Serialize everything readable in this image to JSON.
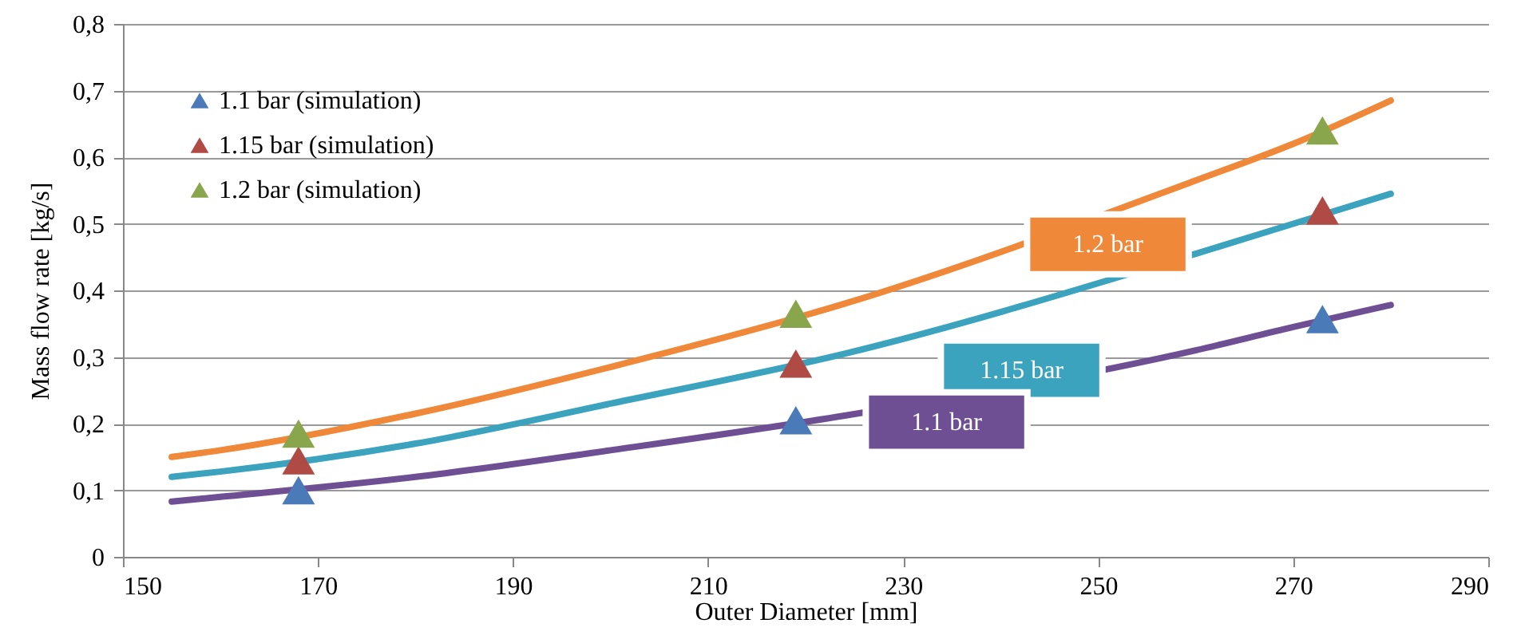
{
  "chart_data": {
    "type": "line",
    "xlabel": "Outer Diameter [mm]",
    "ylabel": "Mass flow rate [kg/s]",
    "xlim": [
      150,
      290
    ],
    "xticks": [
      150,
      170,
      190,
      210,
      230,
      250,
      270,
      290
    ],
    "ylim": [
      0,
      0.8
    ],
    "yticks": [
      0,
      {
        "value": 0.1,
        "label": "0,1"
      },
      {
        "value": 0.2,
        "label": "0,2"
      },
      {
        "value": 0.3,
        "label": "0,3"
      },
      {
        "value": 0.4,
        "label": "0,4"
      },
      {
        "value": 0.5,
        "label": "0,5"
      },
      {
        "value": 0.6,
        "label": "0,6"
      },
      {
        "value": 0.7,
        "label": "0,7"
      },
      {
        "value": 0.8,
        "label": "0,8"
      }
    ],
    "grid": "y",
    "legend": "top left",
    "series": [
      {
        "name": "1.2 bar",
        "color": "#f0883a",
        "x": [
          155,
          160,
          180,
          200,
          224,
          260,
          270,
          280
        ],
        "values": [
          0.15,
          0.16,
          0.215,
          0.285,
          0.38,
          0.565,
          0.62,
          0.685
        ]
      },
      {
        "name": "1.15 bar",
        "color": "#3ba3bd",
        "x": [
          155,
          160,
          180,
          200,
          224,
          260,
          270,
          280
        ],
        "values": [
          0.12,
          0.128,
          0.17,
          0.23,
          0.305,
          0.455,
          0.5,
          0.545
        ]
      },
      {
        "name": "1.1 bar",
        "color": "#6f4f94",
        "x": [
          155,
          160,
          180,
          200,
          224,
          260,
          270,
          280
        ],
        "values": [
          0.083,
          0.09,
          0.12,
          0.16,
          0.212,
          0.31,
          0.345,
          0.378
        ]
      },
      {
        "name": "1.1 bar (simulation)",
        "type": "scatter",
        "marker": "triangle",
        "color": "#4a7ab8",
        "x": [
          168,
          219,
          273
        ],
        "values": [
          0.1,
          0.205,
          0.357
        ]
      },
      {
        "name": "1.15 bar (simulation)",
        "type": "scatter",
        "marker": "triangle",
        "color": "#b04a45",
        "x": [
          168,
          219,
          273
        ],
        "values": [
          0.145,
          0.29,
          0.52
        ]
      },
      {
        "name": "1.2 bar (simulation)",
        "type": "scatter",
        "marker": "triangle",
        "color": "#8aa64c",
        "x": [
          168,
          219,
          273
        ],
        "values": [
          0.185,
          0.365,
          0.64
        ]
      }
    ]
  }
}
